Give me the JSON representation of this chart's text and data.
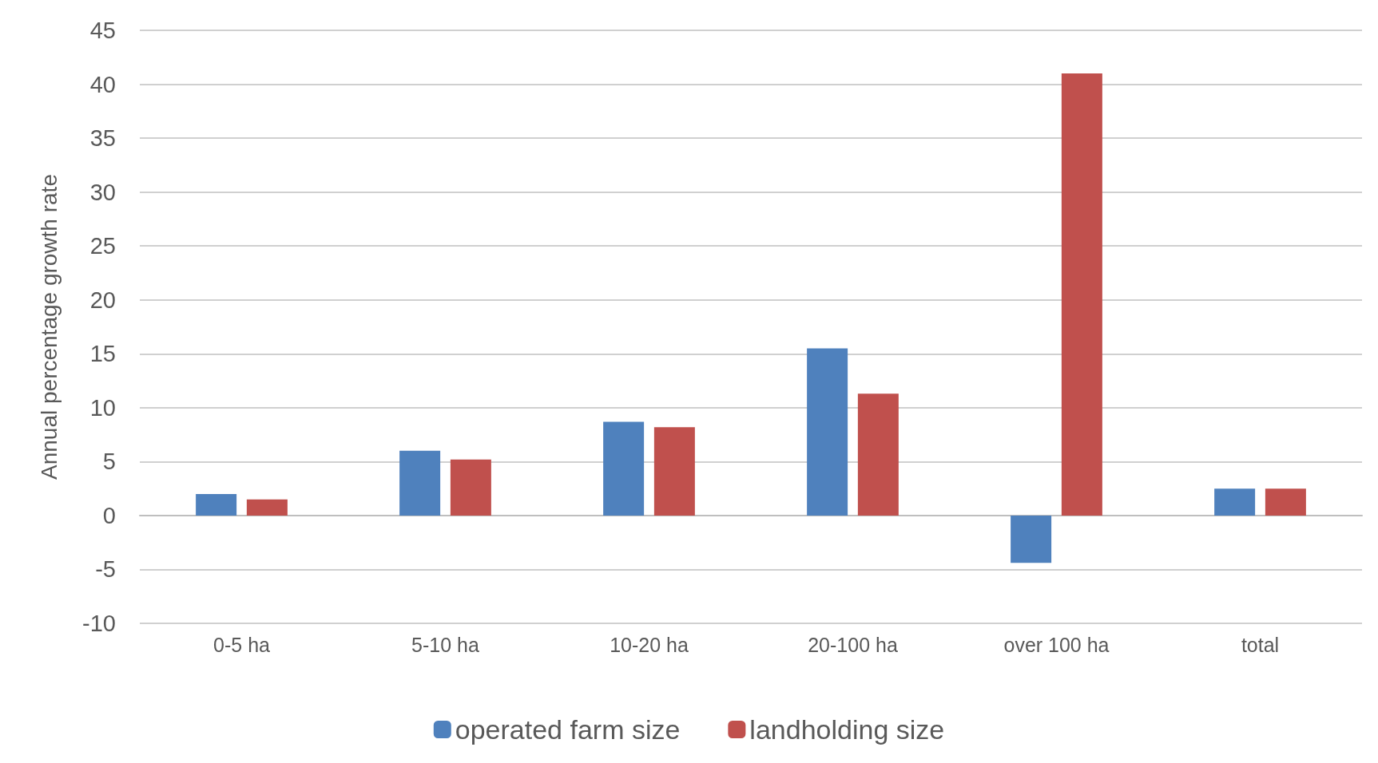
{
  "chart_data": {
    "type": "bar",
    "ylabel": "Annual percentage growth rate",
    "categories": [
      "0-5 ha",
      "5-10 ha",
      "10-20 ha",
      "20-100 ha",
      "over 100 ha",
      "total"
    ],
    "series": [
      {
        "name": "operated farm size",
        "color": "#4f81bd",
        "values": [
          2.0,
          6.0,
          8.7,
          15.5,
          -4.4,
          2.5
        ]
      },
      {
        "name": "landholding size",
        "color": "#c0504d",
        "values": [
          1.5,
          5.2,
          8.2,
          11.3,
          41.0,
          2.5
        ]
      }
    ],
    "ylim": [
      -10,
      45
    ],
    "yticks": [
      -10,
      -5,
      0,
      5,
      10,
      15,
      20,
      25,
      30,
      35,
      40,
      45
    ],
    "grid": "y",
    "legend": "bottom"
  }
}
